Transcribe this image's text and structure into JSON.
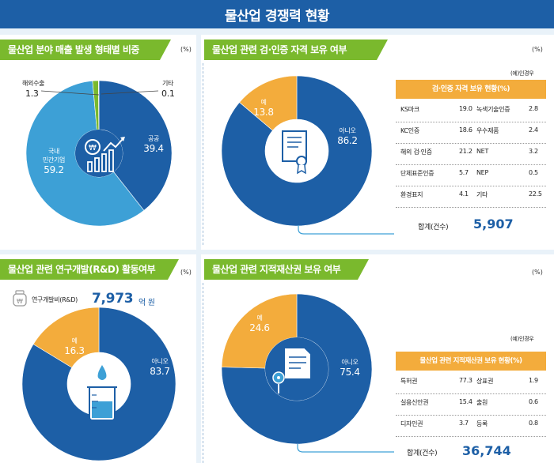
{
  "title": "물산업 경쟁력 현황",
  "colors": {
    "blue": "#1d5fa6",
    "lightblue": "#3da0d6",
    "green": "#7ab92d",
    "orange": "#f3ac3c"
  },
  "charts": {
    "sales": {
      "heading": "물산업 분야 매출 발생 형태별 비중",
      "unit": "(%)",
      "labels": {
        "export": "해외수출",
        "export_val": "1.3",
        "other": "기타",
        "other_val": "0.1",
        "public": "공공",
        "public_val": "39.4",
        "private_l1": "국내",
        "private_l2": "민간기업",
        "private_val": "59.2"
      }
    },
    "cert": {
      "heading": "물산업 관련 검·인증 자격 보유 여부",
      "unit": "(%)",
      "labels": {
        "yes": "예",
        "yes_val": "13.8",
        "no": "아니오",
        "no_val": "86.2"
      },
      "table": {
        "note": "(예)인경우",
        "header": "검·인증 자격 보유 현황(%)",
        "rows": [
          [
            "KS마크",
            "19.0",
            "녹색기술인증",
            "2.8"
          ],
          [
            "KC인증",
            "18.6",
            "우수제품",
            "2.4"
          ],
          [
            "해외 검·인증",
            "21.2",
            "NET",
            "3.2"
          ],
          [
            "단체표준인증",
            "5.7",
            "NEP",
            "0.5"
          ],
          [
            "환경표지",
            "4.1",
            "기타",
            "22.5"
          ]
        ],
        "total_label": "합계(건수)",
        "total_value": "5,907"
      }
    },
    "rnd": {
      "heading": "물산업 관련 연구개발(R&D) 활동여부",
      "unit": "(%)",
      "budget_label": "연구개발비(R&D)",
      "budget_value": "7,973",
      "budget_unit": "억 원",
      "labels": {
        "yes": "예",
        "yes_val": "16.3",
        "no": "아니오",
        "no_val": "83.7"
      }
    },
    "ip": {
      "heading": "물산업 관련 지적재산권 보유 여부",
      "unit": "(%)",
      "labels": {
        "yes": "예",
        "yes_val": "24.6",
        "no": "아니오",
        "no_val": "75.4"
      },
      "table": {
        "note": "(예)인경우",
        "header": "물산업 관련 지적재산권 보유 현황(%)",
        "rows": [
          [
            "특허권",
            "77.3",
            "상표권",
            "1.9"
          ],
          [
            "실용신안권",
            "15.4",
            "출원",
            "0.6"
          ],
          [
            "디자인권",
            "3.7",
            "등록",
            "0.8"
          ]
        ],
        "total_label": "합계(건수)",
        "total_value": "36,744"
      }
    }
  },
  "chart_data": [
    {
      "type": "pie",
      "title": "물산업 분야 매출 발생 형태별 비중",
      "categories": [
        "공공",
        "국내 민간기업",
        "해외수출",
        "기타"
      ],
      "values": [
        39.4,
        59.2,
        1.3,
        0.1
      ]
    },
    {
      "type": "pie",
      "title": "물산업 관련 검·인증 자격 보유 여부",
      "categories": [
        "아니오",
        "예"
      ],
      "values": [
        86.2,
        13.8
      ]
    },
    {
      "type": "pie",
      "title": "물산업 관련 연구개발(R&D) 활동여부",
      "categories": [
        "아니오",
        "예"
      ],
      "values": [
        83.7,
        16.3
      ]
    },
    {
      "type": "pie",
      "title": "물산업 관련 지적재산권 보유 여부",
      "categories": [
        "아니오",
        "예"
      ],
      "values": [
        75.4,
        24.6
      ]
    }
  ]
}
